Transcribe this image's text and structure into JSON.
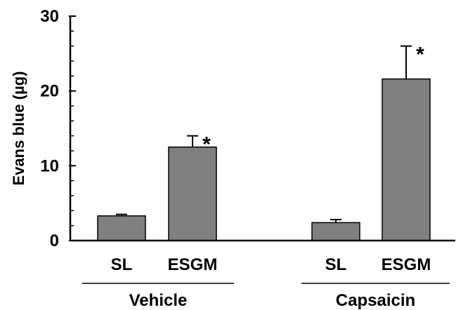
{
  "chart_data": {
    "type": "bar",
    "ylabel": "Evans blue (µg)",
    "ylim": [
      0,
      30
    ],
    "yticks": [
      0,
      10,
      20,
      30
    ],
    "grid": false,
    "groups": [
      {
        "name": "Vehicle",
        "bars": [
          {
            "category": "SL",
            "value": 3.3,
            "error": 0.2,
            "annotation": ""
          },
          {
            "category": "ESGM",
            "value": 12.5,
            "error": 1.5,
            "annotation": "*"
          }
        ]
      },
      {
        "name": "Capsaicin",
        "bars": [
          {
            "category": "SL",
            "value": 2.4,
            "error": 0.4,
            "annotation": ""
          },
          {
            "category": "ESGM",
            "value": 21.6,
            "error": 4.4,
            "annotation": "*"
          }
        ]
      }
    ],
    "colors": {
      "bar_fill": "#808080",
      "bar_stroke": "#000000"
    }
  }
}
